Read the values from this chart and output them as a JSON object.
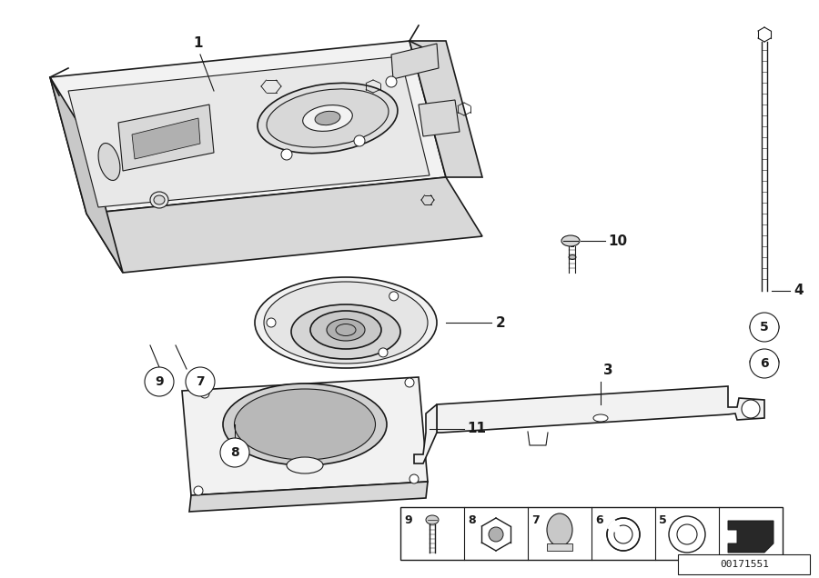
{
  "background_color": "#ffffff",
  "line_color": "#1a1a1a",
  "diagram_id": "00171551",
  "figsize": [
    9.0,
    6.36
  ],
  "dpi": 100
}
